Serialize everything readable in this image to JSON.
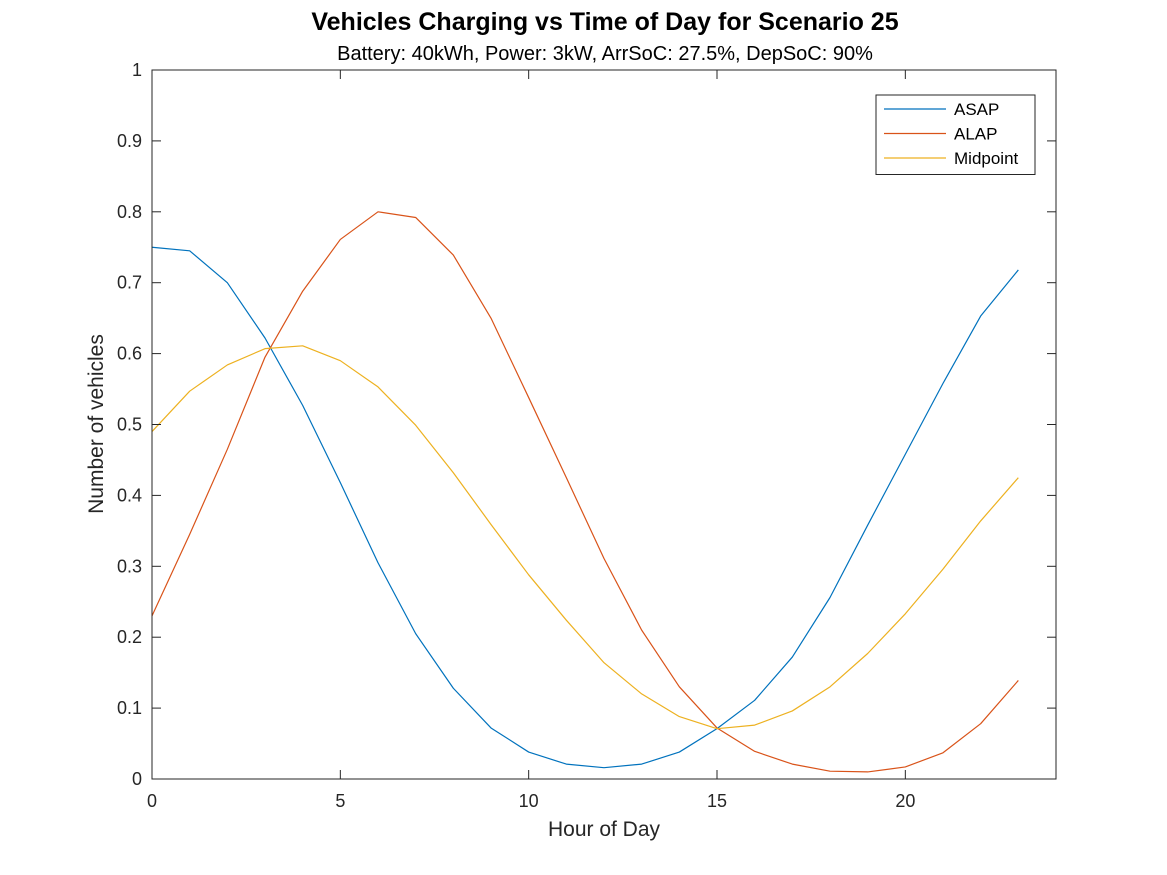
{
  "chart_data": {
    "type": "line",
    "title": "Vehicles Charging vs Time of Day for Scenario 25",
    "subtitle": "Battery: 40kWh, Power: 3kW, ArrSoC: 27.5%, DepSoC: 90%",
    "xlabel": "Hour of Day",
    "ylabel": "Number of vehicles",
    "xlim": [
      0,
      24
    ],
    "ylim": [
      0,
      1
    ],
    "xticks": [
      0,
      5,
      10,
      15,
      20
    ],
    "xtick_labels": [
      "0",
      "5",
      "10",
      "15",
      "20"
    ],
    "yticks": [
      0,
      0.1,
      0.2,
      0.3,
      0.4,
      0.5,
      0.6,
      0.7,
      0.8,
      0.9,
      1
    ],
    "ytick_labels": [
      "0",
      "0.1",
      "0.2",
      "0.3",
      "0.4",
      "0.5",
      "0.6",
      "0.7",
      "0.8",
      "0.9",
      "1"
    ],
    "grid": false,
    "legend_position": "top-right",
    "x": [
      0,
      1,
      2,
      3,
      4,
      5,
      6,
      7,
      8,
      9,
      10,
      11,
      12,
      13,
      14,
      15,
      16,
      17,
      18,
      19,
      20,
      21,
      22,
      23
    ],
    "series": [
      {
        "name": "ASAP",
        "color": "#0072BD",
        "values": [
          0.75,
          0.745,
          0.7,
          0.622,
          0.527,
          0.418,
          0.305,
          0.205,
          0.128,
          0.072,
          0.038,
          0.021,
          0.016,
          0.021,
          0.038,
          0.071,
          0.111,
          0.172,
          0.256,
          0.358,
          0.458,
          0.558,
          0.653,
          0.718
        ]
      },
      {
        "name": "ALAP",
        "color": "#D95319",
        "values": [
          0.23,
          0.345,
          0.465,
          0.595,
          0.688,
          0.761,
          0.8,
          0.792,
          0.739,
          0.65,
          0.538,
          0.425,
          0.311,
          0.21,
          0.13,
          0.072,
          0.039,
          0.021,
          0.011,
          0.01,
          0.017,
          0.037,
          0.078,
          0.139
        ]
      },
      {
        "name": "Midpoint",
        "color": "#EDB120",
        "values": [
          0.49,
          0.547,
          0.584,
          0.607,
          0.611,
          0.59,
          0.553,
          0.499,
          0.432,
          0.359,
          0.288,
          0.224,
          0.164,
          0.12,
          0.088,
          0.071,
          0.076,
          0.096,
          0.13,
          0.177,
          0.233,
          0.296,
          0.364,
          0.425
        ]
      }
    ]
  }
}
